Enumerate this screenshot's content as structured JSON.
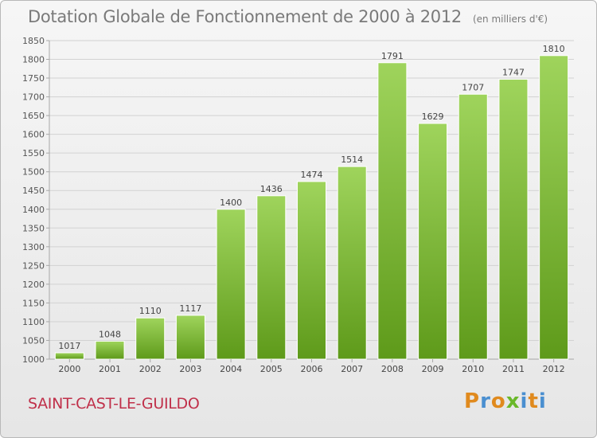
{
  "header": {
    "title": "Dotation Globale de Fonctionnement de 2000 à 2012",
    "subtitle": "(en milliers d'€)"
  },
  "footer": {
    "commune": "SAINT-CAST-LE-GUILDO",
    "brand": [
      "P",
      "r",
      "o",
      "x",
      "i",
      "t",
      "i"
    ]
  },
  "colors": {
    "bar_top": "#9fd45c",
    "bar_bottom": "#5e9a1a",
    "commune": "#c0304a",
    "brand": [
      "#e08a1e",
      "#4a8fd0",
      "#e08a1e",
      "#6ab82a",
      "#4a8fd0",
      "#e08a1e",
      "#4a8fd0"
    ]
  },
  "chart_data": {
    "type": "bar",
    "title": "Dotation Globale de Fonctionnement de 2000 à 2012",
    "subtitle": "(en milliers d'€)",
    "xlabel": "",
    "ylabel": "",
    "categories": [
      "2000",
      "2001",
      "2002",
      "2003",
      "2004",
      "2005",
      "2006",
      "2007",
      "2008",
      "2009",
      "2010",
      "2011",
      "2012"
    ],
    "values": [
      1017,
      1048,
      1110,
      1117,
      1400,
      1436,
      1474,
      1514,
      1791,
      1629,
      1707,
      1747,
      1810
    ],
    "ylim": [
      1000,
      1850
    ],
    "yticks": [
      1000,
      1050,
      1100,
      1150,
      1200,
      1250,
      1300,
      1350,
      1400,
      1450,
      1500,
      1550,
      1600,
      1650,
      1700,
      1750,
      1800,
      1850
    ],
    "grid": true,
    "data_labels": true
  }
}
